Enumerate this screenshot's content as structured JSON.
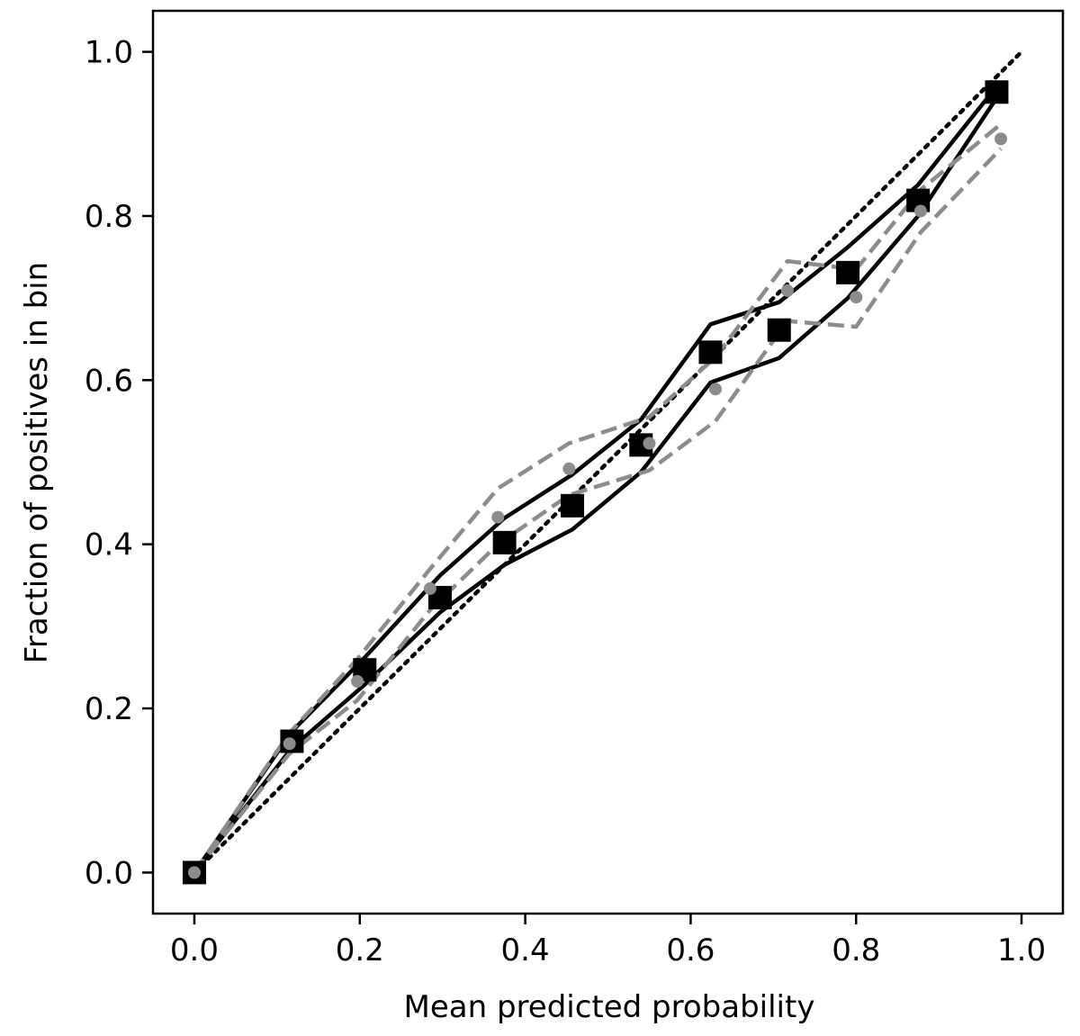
{
  "chart_data": {
    "type": "line",
    "xlabel": "Mean predicted probability",
    "ylabel": "Fraction of positives in bin",
    "xlim": [
      -0.05,
      1.05
    ],
    "ylim": [
      -0.05,
      1.05
    ],
    "x_ticks": [
      "0.0",
      "0.2",
      "0.4",
      "0.6",
      "0.8",
      "1.0"
    ],
    "y_ticks": [
      "0.0",
      "0.2",
      "0.4",
      "0.6",
      "0.8",
      "1.0"
    ],
    "x_tick_values": [
      0.0,
      0.2,
      0.4,
      0.6,
      0.8,
      1.0
    ],
    "y_tick_values": [
      0.0,
      0.2,
      0.4,
      0.6,
      0.8,
      1.0
    ],
    "grid": false,
    "legend": "none",
    "colors": {
      "black": "#000000",
      "gray": "#8c8c8c"
    },
    "reference_line": {
      "x": [
        0.0,
        1.0
      ],
      "y": [
        0.0,
        1.0
      ],
      "style": "dotted",
      "color": "#000000"
    },
    "series": [
      {
        "color": "#000000",
        "line_style": "none",
        "marker": "square",
        "x": [
          0.0,
          0.118,
          0.206,
          0.297,
          0.375,
          0.457,
          0.54,
          0.624,
          0.707,
          0.79,
          0.875,
          0.97
        ],
        "y": [
          0.0,
          0.16,
          0.247,
          0.335,
          0.402,
          0.447,
          0.521,
          0.634,
          0.661,
          0.731,
          0.819,
          0.951
        ]
      },
      {
        "color": "#000000",
        "line_style": "solid",
        "marker": "none",
        "x": [
          0.0,
          0.118,
          0.206,
          0.297,
          0.375,
          0.457,
          0.54,
          0.624,
          0.707,
          0.79,
          0.875,
          0.97
        ],
        "y": [
          0.0,
          0.172,
          0.262,
          0.362,
          0.432,
          0.485,
          0.552,
          0.668,
          0.695,
          0.762,
          0.838,
          0.958
        ]
      },
      {
        "color": "#000000",
        "line_style": "solid",
        "marker": "none",
        "x": [
          0.0,
          0.118,
          0.206,
          0.297,
          0.375,
          0.457,
          0.54,
          0.624,
          0.707,
          0.79,
          0.875,
          0.97
        ],
        "y": [
          0.0,
          0.152,
          0.229,
          0.317,
          0.375,
          0.418,
          0.488,
          0.597,
          0.627,
          0.7,
          0.8,
          0.944
        ]
      },
      {
        "color": "#8c8c8c",
        "line_style": "none",
        "marker": "circle",
        "x": [
          0.0,
          0.115,
          0.197,
          0.285,
          0.367,
          0.453,
          0.55,
          0.63,
          0.717,
          0.8,
          0.878,
          0.975
        ],
        "y": [
          0.0,
          0.157,
          0.233,
          0.346,
          0.433,
          0.492,
          0.523,
          0.589,
          0.709,
          0.701,
          0.806,
          0.894
        ]
      },
      {
        "color": "#8c8c8c",
        "line_style": "dashed",
        "marker": "none",
        "x": [
          0.0,
          0.115,
          0.197,
          0.285,
          0.367,
          0.453,
          0.55,
          0.63,
          0.717,
          0.8,
          0.878,
          0.975
        ],
        "y": [
          0.0,
          0.17,
          0.26,
          0.37,
          0.468,
          0.523,
          0.555,
          0.628,
          0.745,
          0.735,
          0.832,
          0.912
        ]
      },
      {
        "color": "#8c8c8c",
        "line_style": "dashed",
        "marker": "none",
        "x": [
          0.0,
          0.115,
          0.197,
          0.285,
          0.367,
          0.453,
          0.55,
          0.63,
          0.717,
          0.8,
          0.878,
          0.975
        ],
        "y": [
          0.0,
          0.145,
          0.21,
          0.32,
          0.4,
          0.46,
          0.49,
          0.55,
          0.672,
          0.665,
          0.78,
          0.882
        ]
      }
    ]
  }
}
